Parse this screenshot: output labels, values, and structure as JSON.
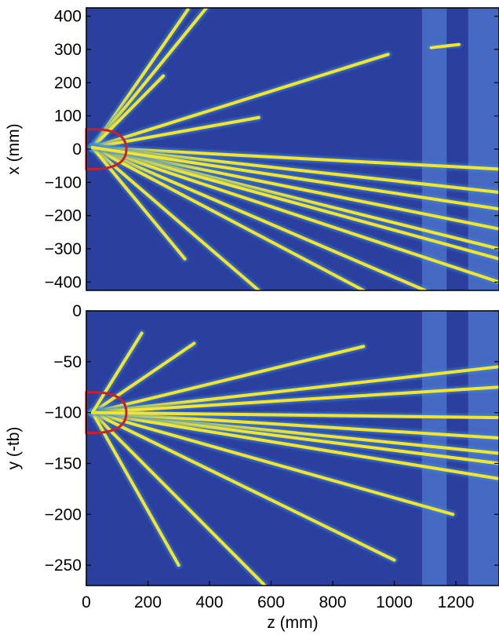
{
  "chart_data": [
    {
      "type": "heatmap",
      "panel": "top",
      "xlabel": "",
      "ylabel": "x (mm)",
      "xlim": [
        0,
        1340
      ],
      "ylim": [
        -425,
        425
      ],
      "xticks": [],
      "yticks": [
        -400,
        -300,
        -200,
        -100,
        0,
        100,
        200,
        300,
        400
      ],
      "ytick_labels": [
        "−400",
        "−300",
        "−200",
        "−100",
        "0",
        "100",
        "200",
        "300",
        "400"
      ],
      "background_color": "#2a3f9e",
      "track_color": "#f5e52a",
      "bands": [
        {
          "z": [
            1090,
            1170
          ],
          "color": "#4f78cf"
        },
        {
          "z": [
            1240,
            1340
          ],
          "color": "#4f78cf"
        }
      ],
      "tracks": [
        {
          "z1": 20,
          "v1": 5,
          "z2": 330,
          "v2": 420
        },
        {
          "z1": 20,
          "v1": 5,
          "z2": 390,
          "v2": 425
        },
        {
          "z1": 20,
          "v1": 5,
          "z2": 250,
          "v2": 220
        },
        {
          "z1": 20,
          "v1": 5,
          "z2": 980,
          "v2": 285
        },
        {
          "z1": 20,
          "v1": 5,
          "z2": 560,
          "v2": 95
        },
        {
          "z1": 20,
          "v1": 5,
          "z2": 1340,
          "v2": -60
        },
        {
          "z1": 20,
          "v1": 5,
          "z2": 1340,
          "v2": -130
        },
        {
          "z1": 20,
          "v1": 5,
          "z2": 1340,
          "v2": -240
        },
        {
          "z1": 20,
          "v1": 5,
          "z2": 1340,
          "v2": -300
        },
        {
          "z1": 20,
          "v1": 5,
          "z2": 1340,
          "v2": -330
        },
        {
          "z1": 20,
          "v1": 5,
          "z2": 1340,
          "v2": -400
        },
        {
          "z1": 20,
          "v1": 5,
          "z2": 1100,
          "v2": -425
        },
        {
          "z1": 20,
          "v1": 5,
          "z2": 900,
          "v2": -425
        },
        {
          "z1": 20,
          "v1": 5,
          "z2": 560,
          "v2": -425
        },
        {
          "z1": 20,
          "v1": 5,
          "z2": 320,
          "v2": -330
        },
        {
          "z1": 20,
          "v1": 5,
          "z2": 1340,
          "v2": -180
        },
        {
          "z1": 1120,
          "v1": 305,
          "z2": 1210,
          "v2": 315
        }
      ],
      "source_outline": {
        "z_tip": 130,
        "v_center": 0,
        "half_width": 60,
        "color": "#c8202a"
      }
    },
    {
      "type": "heatmap",
      "panel": "bottom",
      "xlabel": "z (mm)",
      "ylabel": "y (-tb)",
      "xlim": [
        0,
        1340
      ],
      "ylim": [
        -270,
        0
      ],
      "xticks": [
        0,
        200,
        400,
        600,
        800,
        1000,
        1200
      ],
      "xtick_labels": [
        "0",
        "200",
        "400",
        "600",
        "800",
        "1000",
        "1200"
      ],
      "yticks": [
        -250,
        -200,
        -150,
        -100,
        -50,
        0
      ],
      "ytick_labels": [
        "−250",
        "−200",
        "−150",
        "−100",
        "−50",
        "0"
      ],
      "background_color": "#2a3f9e",
      "track_color": "#f5e52a",
      "bands": [
        {
          "z": [
            1090,
            1170
          ],
          "color": "#4f78cf"
        },
        {
          "z": [
            1240,
            1340
          ],
          "color": "#4f78cf"
        }
      ],
      "tracks": [
        {
          "z1": 20,
          "v1": -100,
          "z2": 350,
          "v2": -32
        },
        {
          "z1": 20,
          "v1": -100,
          "z2": 900,
          "v2": -35
        },
        {
          "z1": 20,
          "v1": -100,
          "z2": 1340,
          "v2": -55
        },
        {
          "z1": 20,
          "v1": -100,
          "z2": 1340,
          "v2": -75
        },
        {
          "z1": 20,
          "v1": -100,
          "z2": 1340,
          "v2": -140
        },
        {
          "z1": 20,
          "v1": -100,
          "z2": 1340,
          "v2": -150
        },
        {
          "z1": 20,
          "v1": -100,
          "z2": 1340,
          "v2": -165
        },
        {
          "z1": 20,
          "v1": -100,
          "z2": 1340,
          "v2": -125
        },
        {
          "z1": 20,
          "v1": -100,
          "z2": 1190,
          "v2": -200
        },
        {
          "z1": 20,
          "v1": -100,
          "z2": 1000,
          "v2": -245
        },
        {
          "z1": 20,
          "v1": -100,
          "z2": 580,
          "v2": -270
        },
        {
          "z1": 20,
          "v1": -100,
          "z2": 300,
          "v2": -250
        },
        {
          "z1": 20,
          "v1": -100,
          "z2": 180,
          "v2": -22
        },
        {
          "z1": 20,
          "v1": -100,
          "z2": 1340,
          "v2": -105
        }
      ],
      "source_outline": {
        "z_tip": 130,
        "v_center": -100,
        "half_width": 20,
        "color": "#c8202a"
      }
    }
  ]
}
